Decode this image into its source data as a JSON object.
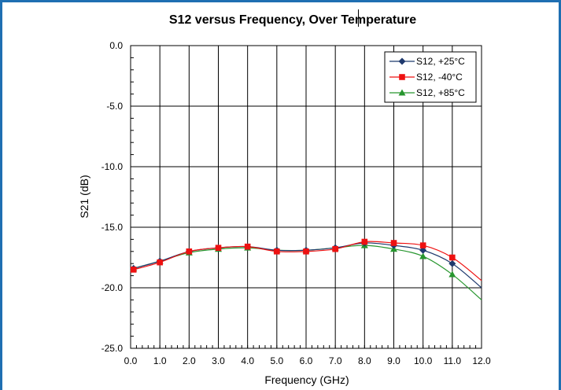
{
  "chart_data": {
    "type": "line",
    "title": "S12 versus Frequency, Over Temperature",
    "xlabel": "Frequency (GHz)",
    "ylabel": "S21 (dB)",
    "xlim": [
      0.0,
      12.0
    ],
    "ylim": [
      -25.0,
      0.0
    ],
    "x_ticks": [
      "0.0",
      "1.0",
      "2.0",
      "3.0",
      "4.0",
      "5.0",
      "6.0",
      "7.0",
      "8.0",
      "9.0",
      "10.0",
      "11.0",
      "12.0"
    ],
    "y_ticks": [
      "0.0",
      "-5.0",
      "-10.0",
      "-15.0",
      "-20.0",
      "-25.0"
    ],
    "grid": true,
    "legend_position": "top-right",
    "x": [
      0.1,
      1.0,
      2.0,
      3.0,
      4.0,
      5.0,
      6.0,
      7.0,
      8.0,
      9.0,
      10.0,
      11.0,
      12.0
    ],
    "series": [
      {
        "name": "S12, +25°C",
        "color": "#1f3a6e",
        "marker": "diamond",
        "values": [
          -18.4,
          -17.8,
          -17.0,
          -16.7,
          -16.6,
          -16.9,
          -16.9,
          -16.7,
          -16.3,
          -16.5,
          -16.9,
          -18.0,
          -20.0
        ]
      },
      {
        "name": "S12, -40°C",
        "color": "#ee1111",
        "marker": "square",
        "values": [
          -18.5,
          -17.9,
          -17.0,
          -16.7,
          -16.6,
          -17.0,
          -17.0,
          -16.8,
          -16.2,
          -16.3,
          -16.5,
          -17.5,
          -19.4
        ]
      },
      {
        "name": "S12, +85°C",
        "color": "#27962e",
        "marker": "triangle",
        "values": [
          -18.4,
          -17.8,
          -17.1,
          -16.8,
          -16.7,
          -16.9,
          -16.9,
          -16.7,
          -16.5,
          -16.8,
          -17.4,
          -18.9,
          -21.0
        ]
      }
    ]
  }
}
